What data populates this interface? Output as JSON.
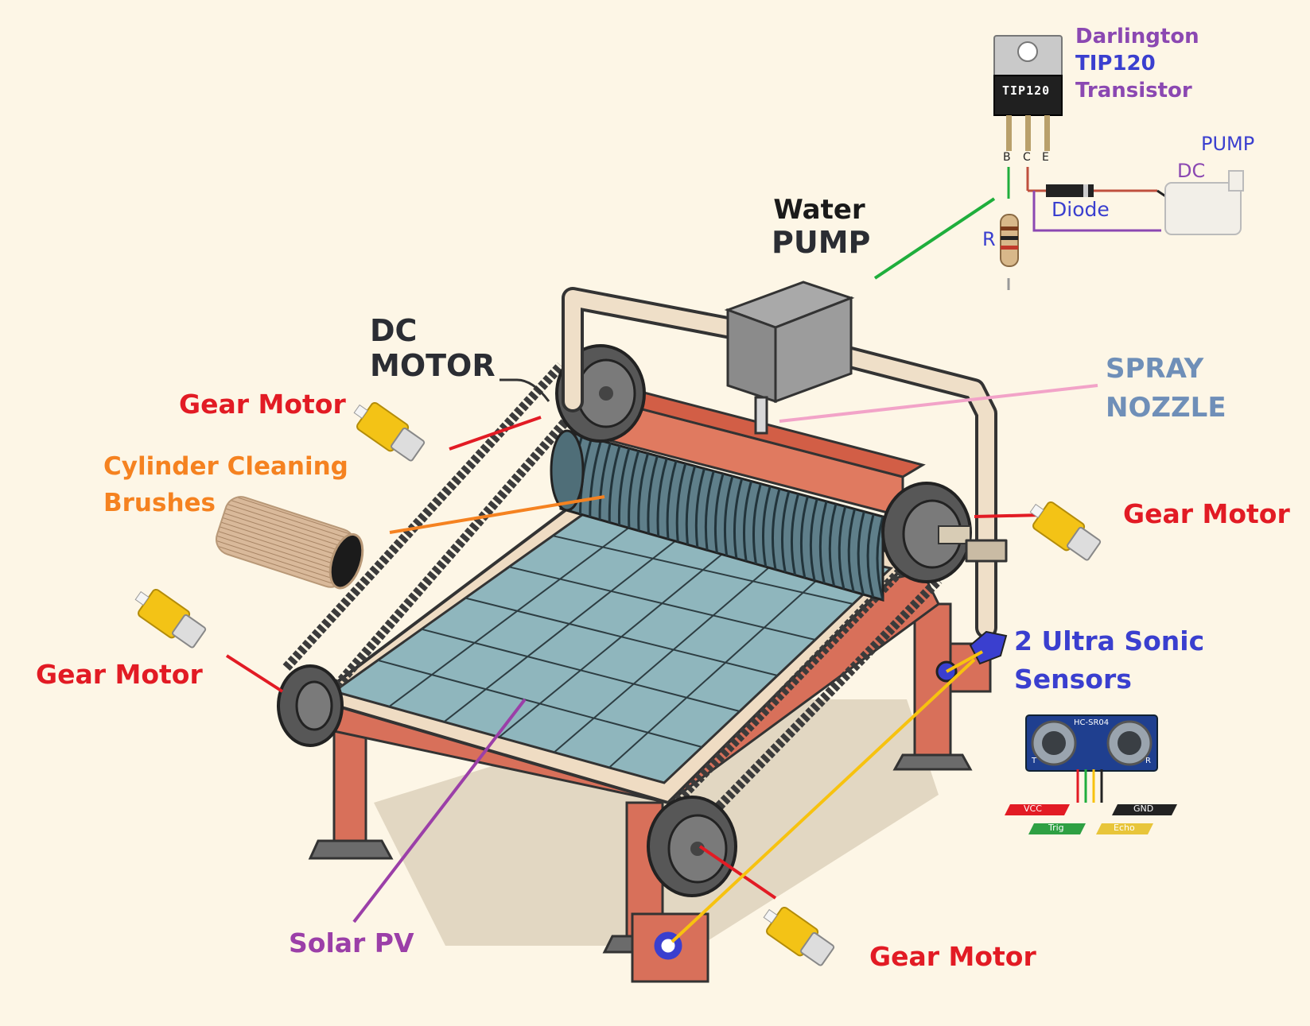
{
  "labels": {
    "water_pump_line1": "Water",
    "water_pump_line2": "PUMP",
    "dc_motor_line1": "DC",
    "dc_motor_line2": "MOTOR",
    "gear_motor_top_left": "Gear Motor",
    "gear_motor_right": "Gear Motor",
    "gear_motor_left": "Gear Motor",
    "gear_motor_bottom": "Gear Motor",
    "cylinder_brushes_line1": "Cylinder Cleaning",
    "cylinder_brushes_line2": "Brushes",
    "spray_nozzle_line1": "SPRAY",
    "spray_nozzle_line2": "NOZZLE",
    "ultrasonic_line1": "2 Ultra Sonic",
    "ultrasonic_line2": "Sensors",
    "solar_pv": "Solar PV"
  },
  "circuit": {
    "transistor_line1": "Darlington",
    "transistor_line2": "TIP120",
    "transistor_line3": "Transistor",
    "chip_marking": "TIP120",
    "pin_b": "B",
    "pin_c": "C",
    "pin_e": "E",
    "resistor": "R",
    "diode": "Diode",
    "pump_line1": "PUMP",
    "pump_line2": "DC"
  },
  "sensor_module": {
    "model": "HC-SR04",
    "pin_t": "T",
    "pin_r": "R",
    "vcc": "VCC",
    "trig": "Trig",
    "echo": "Echo",
    "gnd": "GND"
  },
  "colors": {
    "red_label": "#e21b24",
    "orange_label": "#f58220",
    "dark_label": "#2b2d33",
    "blue_label": "#3a3fcf",
    "steel_blue_label": "#6f8fb8",
    "purple_label": "#9b3fa8",
    "green_wire": "#1fae3c",
    "pink_wire": "#f2a3c8",
    "yellow_wire": "#f7c20f",
    "panel_fill": "#8fb6bd",
    "frame_fill": "#d8705a",
    "background": "#fdf6e6"
  }
}
